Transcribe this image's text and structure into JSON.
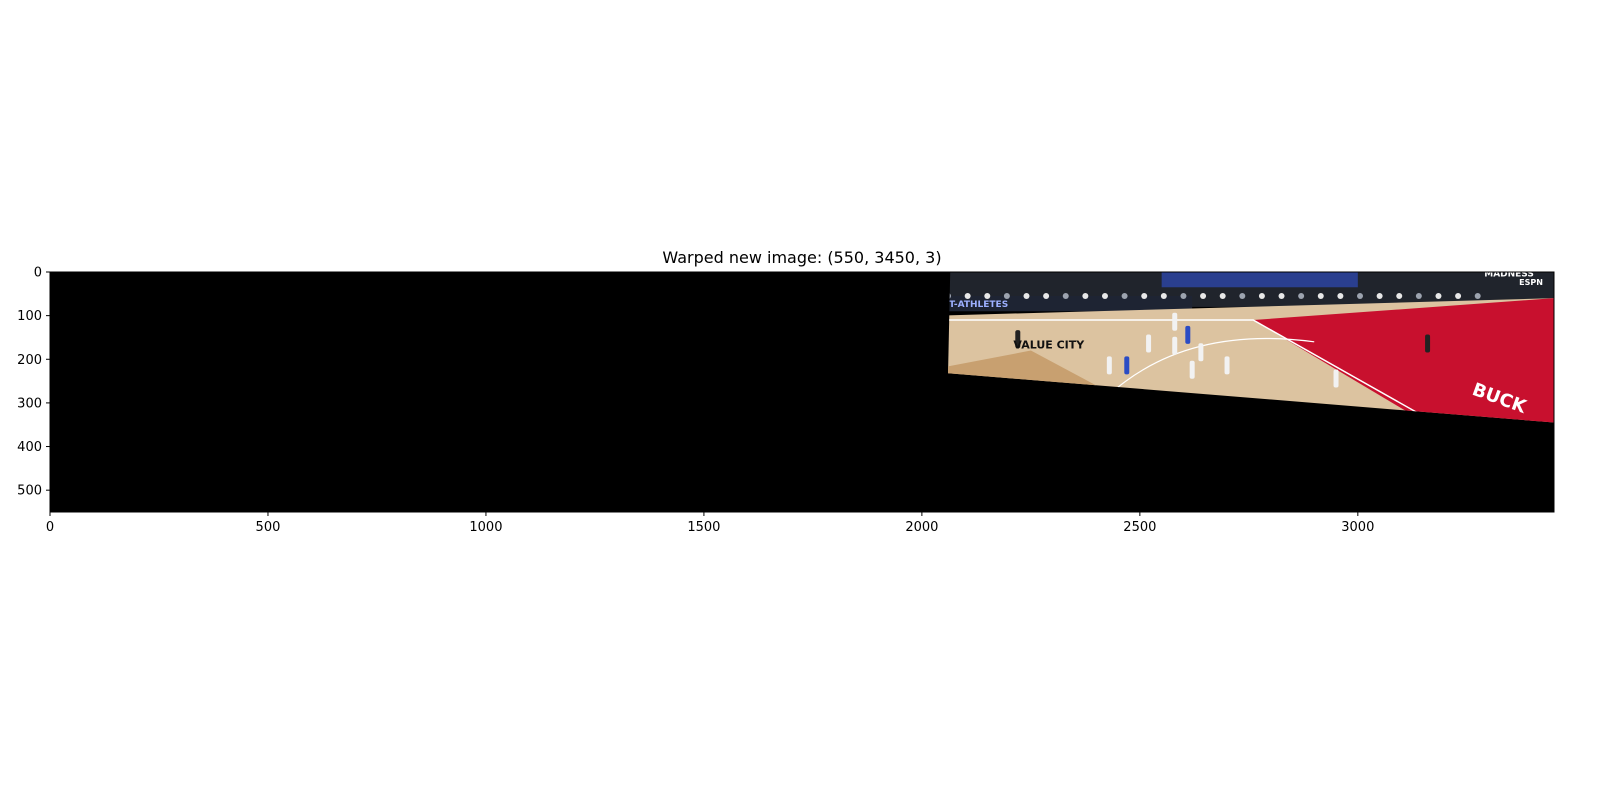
{
  "chart_data": {
    "type": "image",
    "title": "Warped new image: (550, 3450, 3)",
    "xlabel": "",
    "ylabel": "",
    "xlim": [
      0,
      3450
    ],
    "ylim": [
      550,
      0
    ],
    "x_ticks": [
      0,
      500,
      1000,
      1500,
      2000,
      2500,
      3000
    ],
    "y_ticks": [
      0,
      100,
      200,
      300,
      400,
      500
    ],
    "background_color": "#000000",
    "warped_region_corners": [
      [
        2065,
        0
      ],
      [
        3450,
        0
      ],
      [
        3450,
        345
      ],
      [
        2060,
        232
      ]
    ],
    "visible_text_in_image": [
      "NT-ATHLETES",
      "VALUE CITY",
      "MADNESS",
      "ESPN",
      "BUCK"
    ]
  },
  "colors": {
    "court_wood": "#dcc3a0",
    "court_red": "#c8102e",
    "stands_dark": "#20242c",
    "banner_blue": "#2a3f8f"
  }
}
